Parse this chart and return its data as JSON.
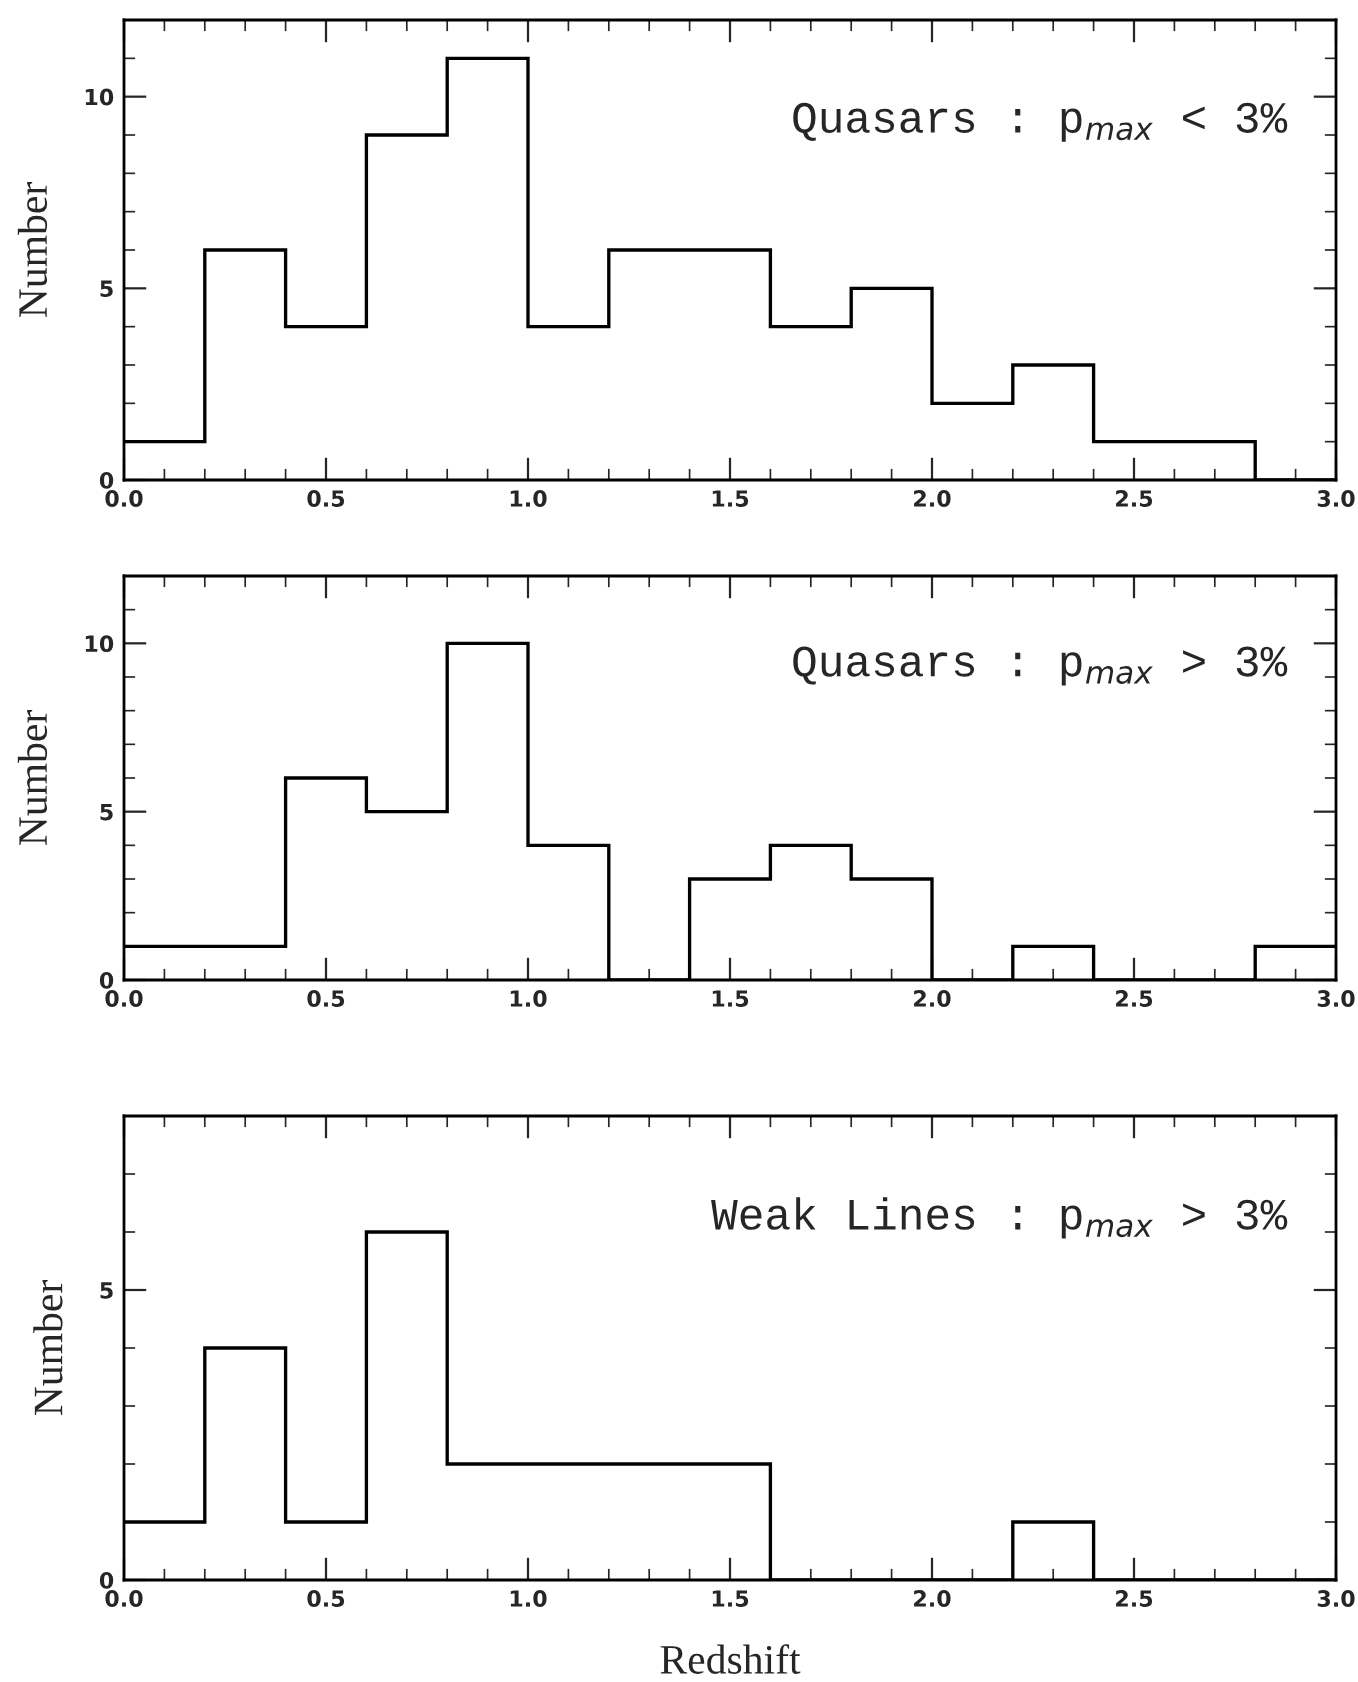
{
  "chart_data": [
    {
      "type": "histogram",
      "ylabel": "Number",
      "annotations": [
        "Quasars : p$_{max}$ < 3%"
      ],
      "bins": [
        0.0,
        0.2,
        0.4,
        0.6,
        0.8,
        1.0,
        1.2,
        1.4,
        1.6,
        1.8,
        2.0,
        2.2,
        2.4,
        2.6,
        2.8,
        3.0
      ],
      "values": [
        1,
        6,
        4,
        9,
        11,
        4,
        6,
        6,
        4,
        5,
        2,
        3,
        1,
        1,
        0
      ],
      "color": "#000000",
      "xlim": [
        0.0,
        3.0
      ],
      "ylim": [
        0,
        12
      ],
      "xticks": [
        {
          "value": 0.0,
          "label": "0.0"
        },
        {
          "value": 0.1,
          "label": null
        },
        {
          "value": 0.2,
          "label": null
        },
        {
          "value": 0.3,
          "label": null
        },
        {
          "value": 0.4,
          "label": null
        },
        {
          "value": 0.5,
          "label": "0.5"
        },
        {
          "value": 0.6,
          "label": null
        },
        {
          "value": 0.7,
          "label": null
        },
        {
          "value": 0.8,
          "label": null
        },
        {
          "value": 0.9,
          "label": null
        },
        {
          "value": 1.0,
          "label": "1.0"
        },
        {
          "value": 1.1,
          "label": null
        },
        {
          "value": 1.2,
          "label": null
        },
        {
          "value": 1.3,
          "label": null
        },
        {
          "value": 1.4,
          "label": null
        },
        {
          "value": 1.5,
          "label": "1.5"
        },
        {
          "value": 1.6,
          "label": null
        },
        {
          "value": 1.7,
          "label": null
        },
        {
          "value": 1.8,
          "label": null
        },
        {
          "value": 1.9,
          "label": null
        },
        {
          "value": 2.0,
          "label": "2.0"
        },
        {
          "value": 2.1,
          "label": null
        },
        {
          "value": 2.2,
          "label": null
        },
        {
          "value": 2.3,
          "label": null
        },
        {
          "value": 2.4,
          "label": null
        },
        {
          "value": 2.5,
          "label": "2.5"
        },
        {
          "value": 2.6,
          "label": null
        },
        {
          "value": 2.7,
          "label": null
        },
        {
          "value": 2.8,
          "label": null
        },
        {
          "value": 2.9,
          "label": null
        },
        {
          "value": 3.0,
          "label": "3.0"
        }
      ],
      "yticks": [
        0,
        {
          "value": 1,
          "label": null
        },
        {
          "value": 2,
          "label": null
        },
        {
          "value": 3,
          "label": null
        },
        {
          "value": 4,
          "label": null
        },
        5,
        {
          "value": 6,
          "label": null
        },
        {
          "value": 7,
          "label": null
        },
        {
          "value": 8,
          "label": null
        },
        {
          "value": 9,
          "label": null
        },
        10,
        {
          "value": 11,
          "label": null
        }
      ]
    },
    {
      "type": "histogram",
      "ylabel": "Number",
      "annotations": [
        "Quasars : p$_{max}$ > 3%"
      ],
      "bins": [
        0.0,
        0.2,
        0.4,
        0.6,
        0.8,
        1.0,
        1.2,
        1.4,
        1.6,
        1.8,
        2.0,
        2.2,
        2.4,
        2.6,
        2.8,
        3.0
      ],
      "values": [
        1,
        1,
        6,
        5,
        10,
        4,
        0,
        3,
        4,
        3,
        0,
        1,
        0,
        0,
        1
      ],
      "color": "#000000",
      "xlim": [
        0.0,
        3.0
      ],
      "ylim": [
        0,
        12
      ],
      "xticks": [
        {
          "value": 0.0,
          "label": "0.0"
        },
        {
          "value": 0.1,
          "label": null
        },
        {
          "value": 0.2,
          "label": null
        },
        {
          "value": 0.3,
          "label": null
        },
        {
          "value": 0.4,
          "label": null
        },
        {
          "value": 0.5,
          "label": "0.5"
        },
        {
          "value": 0.6,
          "label": null
        },
        {
          "value": 0.7,
          "label": null
        },
        {
          "value": 0.8,
          "label": null
        },
        {
          "value": 0.9,
          "label": null
        },
        {
          "value": 1.0,
          "label": "1.0"
        },
        {
          "value": 1.1,
          "label": null
        },
        {
          "value": 1.2,
          "label": null
        },
        {
          "value": 1.3,
          "label": null
        },
        {
          "value": 1.4,
          "label": null
        },
        {
          "value": 1.5,
          "label": "1.5"
        },
        {
          "value": 1.6,
          "label": null
        },
        {
          "value": 1.7,
          "label": null
        },
        {
          "value": 1.8,
          "label": null
        },
        {
          "value": 1.9,
          "label": null
        },
        {
          "value": 2.0,
          "label": "2.0"
        },
        {
          "value": 2.1,
          "label": null
        },
        {
          "value": 2.2,
          "label": null
        },
        {
          "value": 2.3,
          "label": null
        },
        {
          "value": 2.4,
          "label": null
        },
        {
          "value": 2.5,
          "label": "2.5"
        },
        {
          "value": 2.6,
          "label": null
        },
        {
          "value": 2.7,
          "label": null
        },
        {
          "value": 2.8,
          "label": null
        },
        {
          "value": 2.9,
          "label": null
        },
        {
          "value": 3.0,
          "label": "3.0"
        }
      ],
      "yticks": [
        0,
        {
          "value": 1,
          "label": null
        },
        {
          "value": 2,
          "label": null
        },
        {
          "value": 3,
          "label": null
        },
        {
          "value": 4,
          "label": null
        },
        5,
        {
          "value": 6,
          "label": null
        },
        {
          "value": 7,
          "label": null
        },
        {
          "value": 8,
          "label": null
        },
        {
          "value": 9,
          "label": null
        },
        10,
        {
          "value": 11,
          "label": null
        }
      ]
    },
    {
      "type": "histogram",
      "xlabel": "Redshift",
      "ylabel": "Number",
      "annotations": [
        "Weak Lines : p$_{max}$ > 3%"
      ],
      "bins": [
        0.0,
        0.2,
        0.4,
        0.6,
        0.8,
        1.0,
        1.2,
        1.4,
        1.6,
        1.8,
        2.0,
        2.2,
        2.4,
        2.6,
        2.8,
        3.0
      ],
      "values": [
        1,
        4,
        1,
        6,
        2,
        2,
        2,
        2,
        0,
        0,
        0,
        1,
        0,
        0,
        0
      ],
      "color": "#000000",
      "xlim": [
        0.0,
        3.0
      ],
      "ylim": [
        0,
        8
      ],
      "xticks": [
        {
          "value": 0.0,
          "label": "0.0"
        },
        {
          "value": 0.1,
          "label": null
        },
        {
          "value": 0.2,
          "label": null
        },
        {
          "value": 0.3,
          "label": null
        },
        {
          "value": 0.4,
          "label": null
        },
        {
          "value": 0.5,
          "label": "0.5"
        },
        {
          "value": 0.6,
          "label": null
        },
        {
          "value": 0.7,
          "label": null
        },
        {
          "value": 0.8,
          "label": null
        },
        {
          "value": 0.9,
          "label": null
        },
        {
          "value": 1.0,
          "label": "1.0"
        },
        {
          "value": 1.1,
          "label": null
        },
        {
          "value": 1.2,
          "label": null
        },
        {
          "value": 1.3,
          "label": null
        },
        {
          "value": 1.4,
          "label": null
        },
        {
          "value": 1.5,
          "label": "1.5"
        },
        {
          "value": 1.6,
          "label": null
        },
        {
          "value": 1.7,
          "label": null
        },
        {
          "value": 1.8,
          "label": null
        },
        {
          "value": 1.9,
          "label": null
        },
        {
          "value": 2.0,
          "label": "2.0"
        },
        {
          "value": 2.1,
          "label": null
        },
        {
          "value": 2.2,
          "label": null
        },
        {
          "value": 2.3,
          "label": null
        },
        {
          "value": 2.4,
          "label": null
        },
        {
          "value": 2.5,
          "label": "2.5"
        },
        {
          "value": 2.6,
          "label": null
        },
        {
          "value": 2.7,
          "label": null
        },
        {
          "value": 2.8,
          "label": null
        },
        {
          "value": 2.9,
          "label": null
        },
        {
          "value": 3.0,
          "label": "3.0"
        }
      ],
      "yticks": [
        0,
        {
          "value": 1,
          "label": null
        },
        {
          "value": 2,
          "label": null
        },
        {
          "value": 3,
          "label": null
        },
        {
          "value": 4,
          "label": null
        },
        5,
        {
          "value": 6,
          "label": null
        },
        {
          "value": 7,
          "label": null
        }
      ]
    }
  ]
}
